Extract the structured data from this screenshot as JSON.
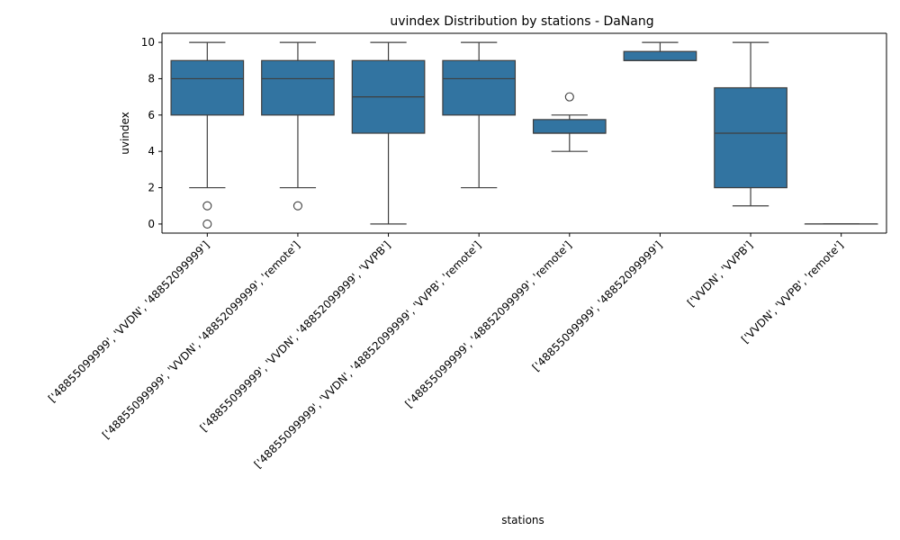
{
  "chart_data": {
    "type": "box",
    "title": "uvindex Distribution by stations - DaNang",
    "xlabel": "stations",
    "ylabel": "uvindex",
    "ylim": [
      -0.5,
      10.5
    ],
    "yticks": [
      0,
      2,
      4,
      6,
      8,
      10
    ],
    "grid": false,
    "legend": "none",
    "box_color": "#3274a1",
    "line_color": "#3f3f3f",
    "categories": [
      "['48855099999', 'VVDN', '48852099999']",
      "['48855099999', 'VVDN', '48852099999', 'remote']",
      "['48855099999', 'VVDN', '48852099999', 'VVPB']",
      "['48855099999', 'VVDN', '48852099999', 'VVPB', 'remote']",
      "['48855099999', '48852099999', 'remote']",
      "['48855099999', '48852099999']",
      "['VVDN', 'VVPB']",
      "['VVDN', 'VVPB', 'remote']"
    ],
    "boxes": [
      {
        "whisker_low": 2,
        "q1": 6,
        "median": 8,
        "q3": 9,
        "whisker_high": 10,
        "outliers": [
          1,
          0
        ]
      },
      {
        "whisker_low": 2,
        "q1": 6,
        "median": 8,
        "q3": 9,
        "whisker_high": 10,
        "outliers": [
          1
        ]
      },
      {
        "whisker_low": 0,
        "q1": 5,
        "median": 7,
        "q3": 9,
        "whisker_high": 10,
        "outliers": []
      },
      {
        "whisker_low": 2,
        "q1": 6,
        "median": 8,
        "q3": 9,
        "whisker_high": 10,
        "outliers": []
      },
      {
        "whisker_low": 4,
        "q1": 5,
        "median": 5,
        "q3": 5.75,
        "whisker_high": 6,
        "outliers": [
          7
        ]
      },
      {
        "whisker_low": 9,
        "q1": 9,
        "median": 9,
        "q3": 9.5,
        "whisker_high": 10,
        "outliers": []
      },
      {
        "whisker_low": 1,
        "q1": 2,
        "median": 5,
        "q3": 7.5,
        "whisker_high": 10,
        "outliers": []
      },
      {
        "whisker_low": 0,
        "q1": 0,
        "median": 0,
        "q3": 0,
        "whisker_high": 0,
        "outliers": []
      }
    ]
  }
}
